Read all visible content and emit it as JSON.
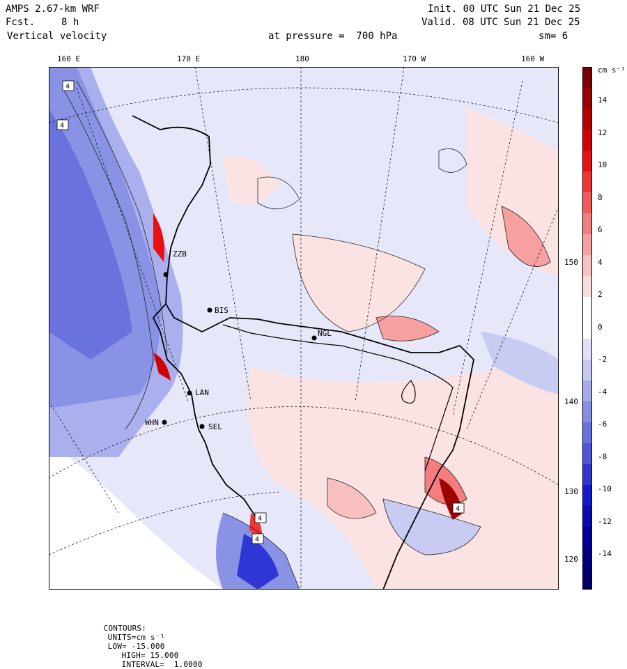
{
  "header": {
    "model": "AMPS 2.67-km WRF",
    "forecast_label": "Fcst.",
    "forecast_value": "8 h",
    "variable": "Vertical velocity",
    "init": "Init. 00 UTC Sun 21 Dec 25",
    "valid": "Valid. 08 UTC Sun 21 Dec 25",
    "pressure_level": "at pressure =  700 hPa",
    "smoothing": "sm= 6"
  },
  "map": {
    "top_longitude_labels": [
      "160 E",
      "170 E",
      "180",
      "170 W",
      "160 W"
    ],
    "right_longitude_labels": [
      "150 W",
      "140 W",
      "130 W",
      "120 W"
    ],
    "stations": [
      {
        "id": "ZZB",
        "label": "ZZB"
      },
      {
        "id": "BIS",
        "label": "BIS"
      },
      {
        "id": "NGL",
        "label": "NGL"
      },
      {
        "id": "LAN",
        "label": "LAN"
      },
      {
        "id": "WHN",
        "label": "WHN"
      },
      {
        "id": "SEL",
        "label": "SEL"
      }
    ],
    "extrema_labels": [
      "4",
      "4",
      "4",
      "4",
      "4"
    ],
    "colors": {
      "land_ice_white": "#ffffff",
      "weak_positive": "#fbe3e3",
      "weak_negative": "#e4e6fa"
    }
  },
  "colorbar": {
    "unit": "cm s⁻¹",
    "ticks": [
      "14",
      "12",
      "10",
      "8",
      "6",
      "4",
      "2",
      "0",
      "-2",
      "-4",
      "-6",
      "-8",
      "-10",
      "-12",
      "-14"
    ],
    "colors": [
      "#7a0000",
      "#9c0000",
      "#b80000",
      "#d40000",
      "#e81010",
      "#f23434",
      "#f35a5a",
      "#f47e7e",
      "#f6a0a0",
      "#f8c0c0",
      "#fbdcdc",
      "#ffffff",
      "#ffffff",
      "#dfe1f8",
      "#c4c8f2",
      "#a4abeb",
      "#858ee4",
      "#6a72dd",
      "#4d55d8",
      "#2f36d4",
      "#1418cc",
      "#0a0ab4",
      "#000098",
      "#000080",
      "#00006a"
    ]
  },
  "footer": {
    "contours_label": "CONTOURS:",
    "units": "UNITS=cm s⁻¹",
    "low": "LOW= -15.000",
    "high": "HIGH= 15.000",
    "interval": "INTERVAL=  1.0000"
  }
}
